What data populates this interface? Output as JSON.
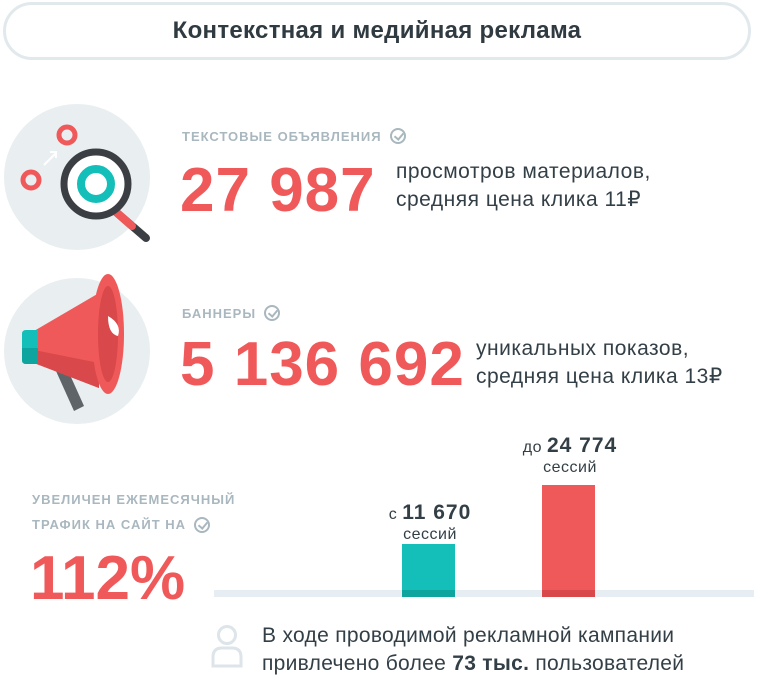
{
  "header": {
    "title": "Контекстная и медийная реклама"
  },
  "sections": [
    {
      "label": "текстовые объявления",
      "value": "27 987",
      "desc_line1": "просмотров материалов,",
      "desc_line2": "средняя цена клика 11₽",
      "icon": "magnifier-icon"
    },
    {
      "label": "баннеры",
      "value": "5 136 692",
      "desc_line1": "уникальных показов,",
      "desc_line2": "средняя цена клика 13₽",
      "icon": "megaphone-icon"
    }
  ],
  "traffic": {
    "label_line1": "УВЕЛИЧЕН ЕЖЕМЕСЯЧНЫЙ",
    "label_line2": "ТРАФИК НА САЙТ НА",
    "percent": "112%",
    "progress_fraction_before": 0.47,
    "progress_fraction_after": 1.0,
    "bars": [
      {
        "prefix": "с",
        "value": "11 670",
        "unit": "сессий",
        "color": "#13bfb8"
      },
      {
        "prefix": "до",
        "value": "24 774",
        "unit": "сессий",
        "color": "#f0595a"
      }
    ]
  },
  "footer": {
    "line1": "В ходе проводимой рекламной кампании",
    "line2_pre": "привлечено более ",
    "line2_bold": "73 тыс.",
    "line2_post": " пользователей",
    "icon": "user-icon"
  },
  "colors": {
    "accent": "#f0595a",
    "teal": "#13bfb8",
    "text": "#333f46",
    "muted": "#a9b7bf"
  }
}
